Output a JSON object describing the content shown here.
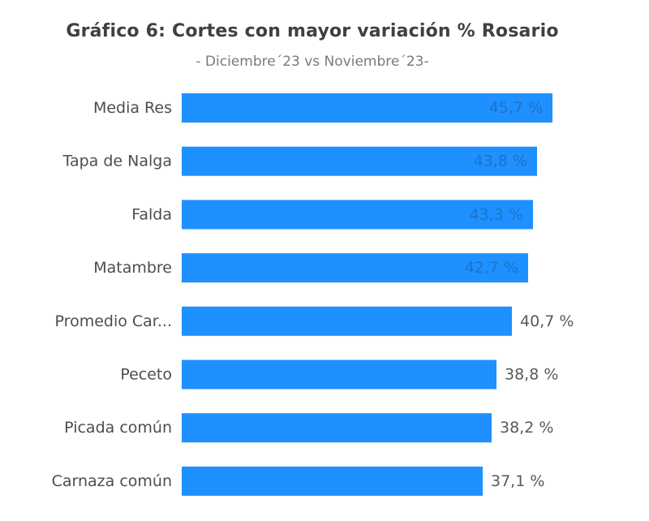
{
  "chart_data": {
    "type": "bar",
    "orientation": "horizontal",
    "title": "Gráfico 6: Cortes con mayor variación % Rosario",
    "subtitle": "- Diciembre´23 vs Noviembre´23-",
    "categories": [
      "Media Res",
      "Tapa de Nalga",
      "Falda",
      "Matambre",
      "Promedio Car...",
      "Peceto",
      "Picada común",
      "Carnaza común"
    ],
    "values": [
      45.7,
      43.8,
      43.3,
      42.7,
      40.7,
      38.8,
      38.2,
      37.1
    ],
    "value_labels": [
      "45,7 %",
      "43,8 %",
      "43,3 %",
      "42,7 %",
      "40,7 %",
      "38,8 %",
      "38,2 %",
      "37,1 %"
    ],
    "xlim": [
      0,
      46
    ],
    "grid": false,
    "legend": "none",
    "colors": {
      "bar": "#1E90FF",
      "label_inside": "#1C74C8",
      "label_outside": "#595959",
      "category_text": "#4D4D4D"
    }
  }
}
